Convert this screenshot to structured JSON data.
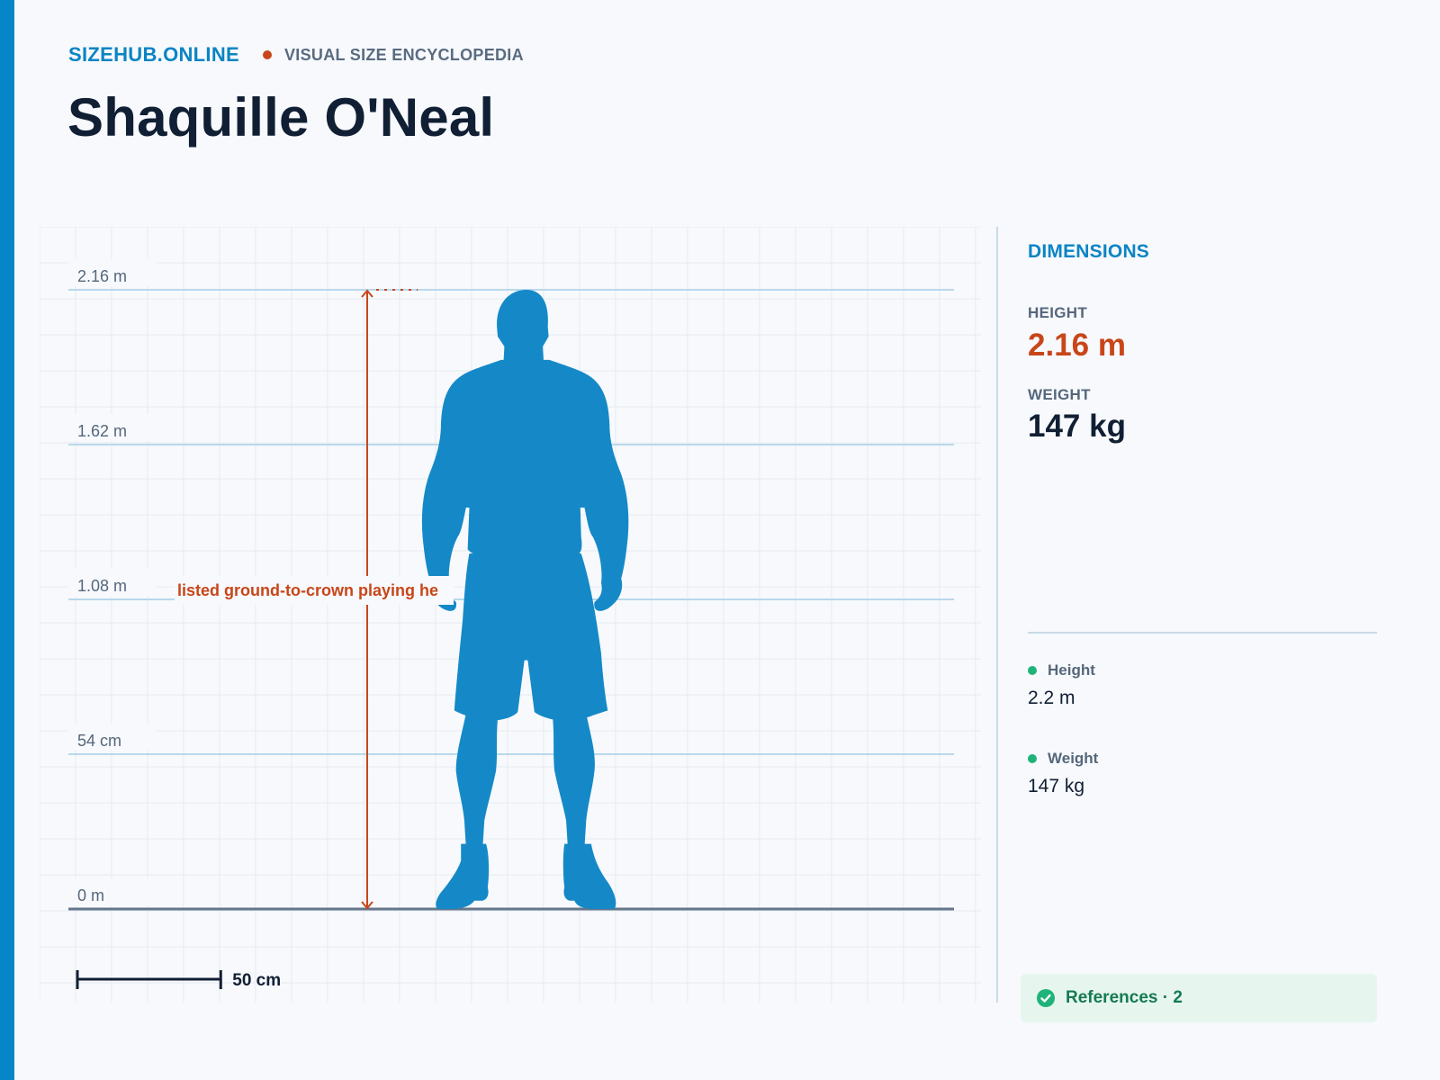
{
  "header": {
    "brand": "SIZEHUB.ONLINE",
    "tagline": "VISUAL SIZE ENCYCLOPEDIA",
    "title": "Shaquille O'Neal"
  },
  "figure": {
    "icon": "person-silhouette-icon",
    "height_m": 2.16,
    "axis_labels": [
      "0 m",
      "54 cm",
      "1.08 m",
      "1.62 m",
      "2.16 m"
    ],
    "axis_values_m": [
      0,
      0.54,
      1.08,
      1.62,
      2.16
    ],
    "measure_note": "listed ground-to-crown playing he",
    "scale_bar_label": "50 cm",
    "scale_bar_m": 0.5
  },
  "dimensions": {
    "heading": "DIMENSIONS",
    "height_label": "HEIGHT",
    "height_value": "2.16 m",
    "weight_label": "WEIGHT",
    "weight_value": "147 kg"
  },
  "sources": [
    {
      "label": "Height",
      "value": "2.2 m"
    },
    {
      "label": "Weight",
      "value": "147 kg"
    }
  ],
  "references": {
    "label": "References · 2",
    "icon": "check-circle-icon"
  },
  "colors": {
    "accent": "#0686c6",
    "silhouette": "#1589c7",
    "measure": "#c8461a",
    "success": "#1fb37a"
  }
}
